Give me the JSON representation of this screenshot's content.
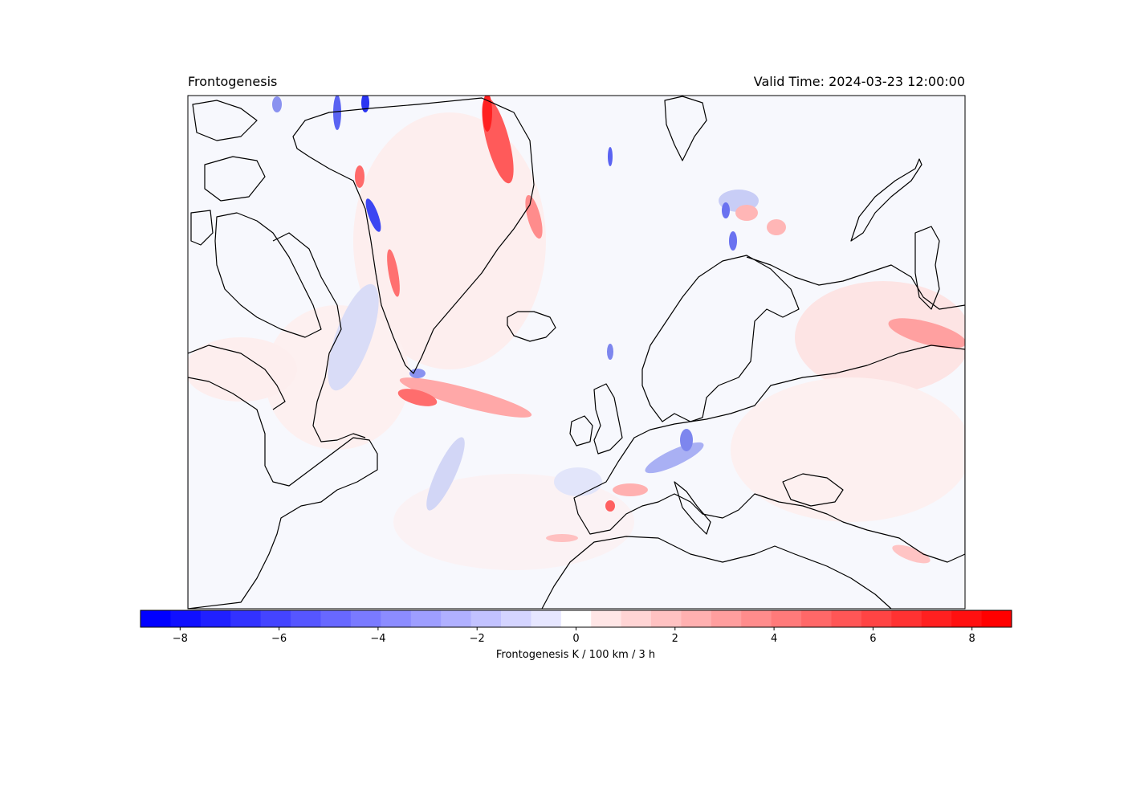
{
  "title": "Frontogenesis",
  "valid_time": "Valid Time: 2024-03-23 12:00:00",
  "map": {
    "projection": "plate-carree",
    "region": "North Atlantic / Europe",
    "background_color": "#f7f8fd",
    "coastline_color": "#000000"
  },
  "colorbar": {
    "label": "Frontogenesis K / 100 km / 3 h",
    "colormap": "bwr",
    "min": -8.8,
    "max": 8.8,
    "ticks": [
      {
        "value": -8,
        "label": "−8"
      },
      {
        "value": -6,
        "label": "−6"
      },
      {
        "value": -4,
        "label": "−4"
      },
      {
        "value": -2,
        "label": "−2"
      },
      {
        "value": 0,
        "label": "0"
      },
      {
        "value": 2,
        "label": "2"
      },
      {
        "value": 4,
        "label": "4"
      },
      {
        "value": 6,
        "label": "6"
      },
      {
        "value": 8,
        "label": "8"
      }
    ],
    "colors": [
      "#0000ff",
      "#1010ff",
      "#2020ff",
      "#3232ff",
      "#4444ff",
      "#5656ff",
      "#6868ff",
      "#7a7aff",
      "#8c8cff",
      "#9e9eff",
      "#b0b0ff",
      "#c2c2ff",
      "#d4d4ff",
      "#e6e6ff",
      "#ffffff",
      "#ffe6e6",
      "#ffd4d4",
      "#ffc2c2",
      "#ffb0b0",
      "#ff9e9e",
      "#ff8c8c",
      "#ff7a7a",
      "#ff6868",
      "#ff5656",
      "#ff4444",
      "#ff3232",
      "#ff2020",
      "#ff1010",
      "#ff0000"
    ]
  }
}
